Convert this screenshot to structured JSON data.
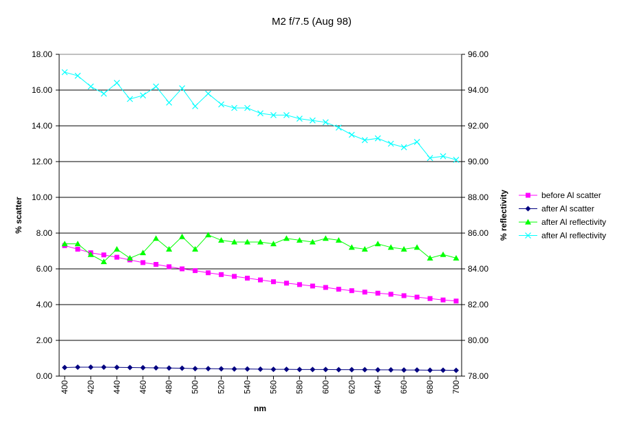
{
  "chart_data": {
    "type": "line",
    "title": "M2 f/7.5 (Aug 98)",
    "xlabel": "nm",
    "ylabel_left": "% scatter",
    "ylabel_right": "% reflectivity",
    "x": [
      400,
      410,
      420,
      430,
      440,
      450,
      460,
      470,
      480,
      490,
      500,
      510,
      520,
      530,
      540,
      550,
      560,
      570,
      580,
      590,
      600,
      610,
      620,
      630,
      640,
      650,
      660,
      670,
      680,
      690,
      700
    ],
    "x_ticks": [
      "400",
      "420",
      "440",
      "460",
      "480",
      "500",
      "520",
      "540",
      "560",
      "580",
      "600",
      "620",
      "640",
      "660",
      "680",
      "700"
    ],
    "ylim_left": [
      0,
      18
    ],
    "ylim_right": [
      78,
      96
    ],
    "yticks_left": [
      "0.00",
      "2.00",
      "4.00",
      "6.00",
      "8.00",
      "10.00",
      "12.00",
      "14.00",
      "16.00",
      "18.00"
    ],
    "yticks_right": [
      "78.00",
      "80.00",
      "82.00",
      "84.00",
      "86.00",
      "88.00",
      "90.00",
      "92.00",
      "94.00",
      "96.00"
    ],
    "grid": "horizontal",
    "legend_position": "right",
    "series": [
      {
        "name": "before Al scatter",
        "axis": "left",
        "marker": "square",
        "color": "#ff00ff",
        "values": [
          7.3,
          7.1,
          6.9,
          6.78,
          6.65,
          6.5,
          6.35,
          6.25,
          6.12,
          6.0,
          5.9,
          5.78,
          5.68,
          5.58,
          5.48,
          5.38,
          5.28,
          5.2,
          5.12,
          5.04,
          4.96,
          4.86,
          4.78,
          4.7,
          4.64,
          4.58,
          4.5,
          4.42,
          4.34,
          4.26,
          4.2
        ]
      },
      {
        "name": "after Al scatter",
        "axis": "left",
        "marker": "diamond",
        "color": "#000080",
        "values": [
          0.48,
          0.5,
          0.5,
          0.5,
          0.49,
          0.48,
          0.47,
          0.46,
          0.45,
          0.44,
          0.42,
          0.42,
          0.41,
          0.4,
          0.4,
          0.39,
          0.38,
          0.38,
          0.37,
          0.37,
          0.37,
          0.36,
          0.36,
          0.36,
          0.35,
          0.35,
          0.34,
          0.34,
          0.33,
          0.33,
          0.32
        ]
      },
      {
        "name": "after Al reflectivity",
        "axis": "right",
        "marker": "triangle",
        "color": "#00ff00",
        "values": [
          85.4,
          85.4,
          84.8,
          84.4,
          85.1,
          84.6,
          84.9,
          85.7,
          85.1,
          85.8,
          85.1,
          85.9,
          85.6,
          85.5,
          85.5,
          85.5,
          85.4,
          85.7,
          85.6,
          85.5,
          85.7,
          85.6,
          85.2,
          85.1,
          85.4,
          85.2,
          85.1,
          85.2,
          84.6,
          84.8,
          84.6
        ]
      },
      {
        "name": "after Al reflectivity",
        "axis": "right",
        "marker": "x",
        "color": "#00ffff",
        "values": [
          95.0,
          94.8,
          94.2,
          93.8,
          94.4,
          93.5,
          93.7,
          94.2,
          93.3,
          94.1,
          93.1,
          93.8,
          93.2,
          93.0,
          93.0,
          92.7,
          92.6,
          92.6,
          92.4,
          92.3,
          92.2,
          91.9,
          91.5,
          91.2,
          91.3,
          91.0,
          90.8,
          91.1,
          90.2,
          90.3,
          90.1
        ]
      }
    ]
  }
}
